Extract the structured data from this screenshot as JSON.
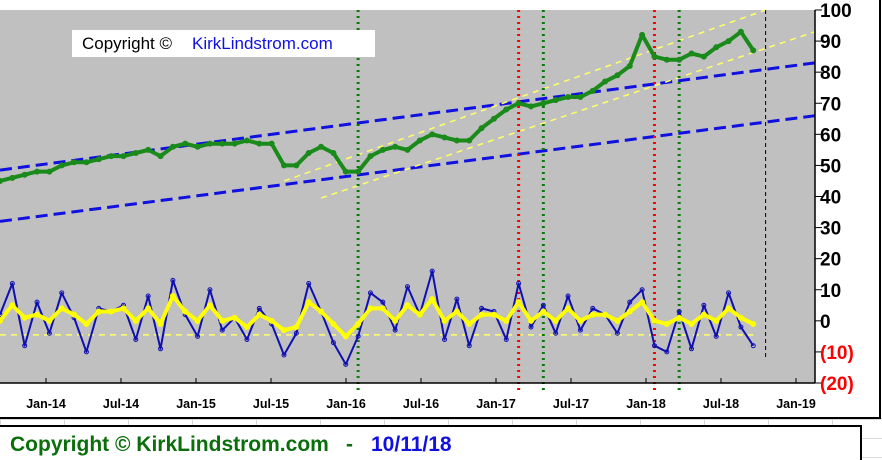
{
  "chart_data": {
    "type": "line",
    "xlim": [
      "2013-09",
      "2019-03"
    ],
    "ylim": [
      -20,
      100
    ],
    "x_ticks": [
      "Jan-14",
      "Jul-14",
      "Jan-15",
      "Jul-15",
      "Jan-16",
      "Jul-16",
      "Jan-17",
      "Jul-17",
      "Jan-18",
      "Jul-18",
      "Jan-19"
    ],
    "y_ticks": [
      {
        "v": 100,
        "label": "100"
      },
      {
        "v": 90,
        "label": "90"
      },
      {
        "v": 80,
        "label": "80"
      },
      {
        "v": 70,
        "label": "70"
      },
      {
        "v": 60,
        "label": "60"
      },
      {
        "v": 50,
        "label": "50"
      },
      {
        "v": 40,
        "label": "40"
      },
      {
        "v": 30,
        "label": "30"
      },
      {
        "v": 20,
        "label": "20"
      },
      {
        "v": 10,
        "label": "10"
      },
      {
        "v": 0,
        "label": "0"
      },
      {
        "v": -10,
        "label": "(10)"
      },
      {
        "v": -20,
        "label": "(20)"
      }
    ],
    "x": [
      "2013-09",
      "2013-10",
      "2013-11",
      "2013-12",
      "2014-01",
      "2014-02",
      "2014-03",
      "2014-04",
      "2014-05",
      "2014-06",
      "2014-07",
      "2014-08",
      "2014-09",
      "2014-10",
      "2014-11",
      "2014-12",
      "2015-01",
      "2015-02",
      "2015-03",
      "2015-04",
      "2015-05",
      "2015-06",
      "2015-07",
      "2015-08",
      "2015-09",
      "2015-10",
      "2015-11",
      "2015-12",
      "2016-01",
      "2016-02",
      "2016-03",
      "2016-04",
      "2016-05",
      "2016-06",
      "2016-07",
      "2016-08",
      "2016-09",
      "2016-10",
      "2016-11",
      "2016-12",
      "2017-01",
      "2017-02",
      "2017-03",
      "2017-04",
      "2017-05",
      "2017-06",
      "2017-07",
      "2017-08",
      "2017-09",
      "2017-10",
      "2017-11",
      "2017-12",
      "2018-01",
      "2018-02",
      "2018-03",
      "2018-04",
      "2018-05",
      "2018-06",
      "2018-07",
      "2018-08",
      "2018-09",
      "2018-10"
    ],
    "series": [
      {
        "role": "price",
        "color": "#1a8a1a",
        "values": [
          45,
          46,
          47,
          48,
          48,
          50,
          51,
          51,
          52,
          53,
          53,
          54,
          55,
          53,
          56,
          57,
          56,
          57,
          57,
          57,
          58,
          57,
          57,
          50,
          50,
          54,
          56,
          54,
          48,
          48,
          53,
          55,
          56,
          55,
          58,
          60,
          59,
          58,
          58,
          62,
          65,
          68,
          70,
          69,
          70,
          71,
          72,
          72,
          74,
          77,
          79,
          82,
          92,
          85,
          84,
          84,
          86,
          85,
          88,
          90,
          93,
          87
        ]
      },
      {
        "role": "oscillator",
        "color": "#1010b0",
        "values": [
          2,
          12,
          -8,
          6,
          -4,
          9,
          1,
          -10,
          4,
          3,
          5,
          -6,
          8,
          -9,
          13,
          2,
          -5,
          10,
          -3,
          1,
          -6,
          4,
          -1,
          -11,
          -4,
          12,
          3,
          -7,
          -14,
          -5,
          9,
          6,
          -3,
          11,
          2,
          16,
          -6,
          7,
          -8,
          4,
          3,
          -6,
          12,
          -2,
          5,
          -4,
          8,
          -3,
          4,
          2,
          -4,
          6,
          10,
          -8,
          -10,
          3,
          -9,
          5,
          -5,
          9,
          -2,
          -8
        ]
      },
      {
        "role": "oscillator-smooth",
        "color": "#ffff00",
        "values": [
          0,
          5,
          1,
          2,
          0,
          4,
          2,
          -1,
          3,
          3,
          4,
          0,
          4,
          -1,
          8,
          3,
          0,
          5,
          0,
          1,
          -2,
          2,
          0,
          -3,
          -2,
          6,
          3,
          -1,
          -5,
          -1,
          4,
          4,
          0,
          5,
          2,
          7,
          0,
          3,
          -1,
          2,
          2,
          0,
          6,
          0,
          3,
          0,
          4,
          0,
          2,
          2,
          0,
          3,
          6,
          0,
          -1,
          1,
          -1,
          2,
          0,
          4,
          1,
          -1
        ]
      }
    ],
    "trendlines": [
      {
        "color": "#1010e0",
        "style": "dashed",
        "from": [
          "2013-09",
          48.5
        ],
        "to": [
          "2019-03",
          83
        ]
      },
      {
        "color": "#1010e0",
        "style": "dashed",
        "from": [
          "2013-09",
          32
        ],
        "to": [
          "2019-03",
          66
        ]
      },
      {
        "color": "#ffff66",
        "style": "dashed",
        "from": [
          "2015-08",
          45
        ],
        "to": [
          "2018-11",
          100
        ]
      },
      {
        "color": "#ffff66",
        "style": "dashed",
        "from": [
          "2015-11",
          39.5
        ],
        "to": [
          "2019-03",
          93
        ]
      },
      {
        "color": "#ffff66",
        "style": "dashed",
        "from": [
          "2013-09",
          -4.5
        ],
        "to": [
          "2018-10",
          -4.5
        ]
      }
    ],
    "vlines": [
      {
        "date": "2016-02",
        "color": "#0a7a0a",
        "style": "dotted"
      },
      {
        "date": "2017-03",
        "color": "#ff0000",
        "style": "dotted"
      },
      {
        "date": "2017-05",
        "color": "#0a7a0a",
        "style": "dotted"
      },
      {
        "date": "2018-02",
        "color": "#ff0000",
        "style": "dotted"
      },
      {
        "date": "2018-04",
        "color": "#0a7a0a",
        "style": "dotted"
      },
      {
        "date": "2018-11",
        "color": "#000000",
        "style": "dashed"
      }
    ],
    "plot_background": "#c0c0c0",
    "negative_label_color": "#ff0000"
  },
  "watermark": {
    "prefix": "Copyright © ",
    "site": "KirkLindstrom.com"
  },
  "footer": {
    "copyright": "Copyright © KirkLindstrom.com",
    "separator": "-",
    "date": "10/11/18"
  }
}
